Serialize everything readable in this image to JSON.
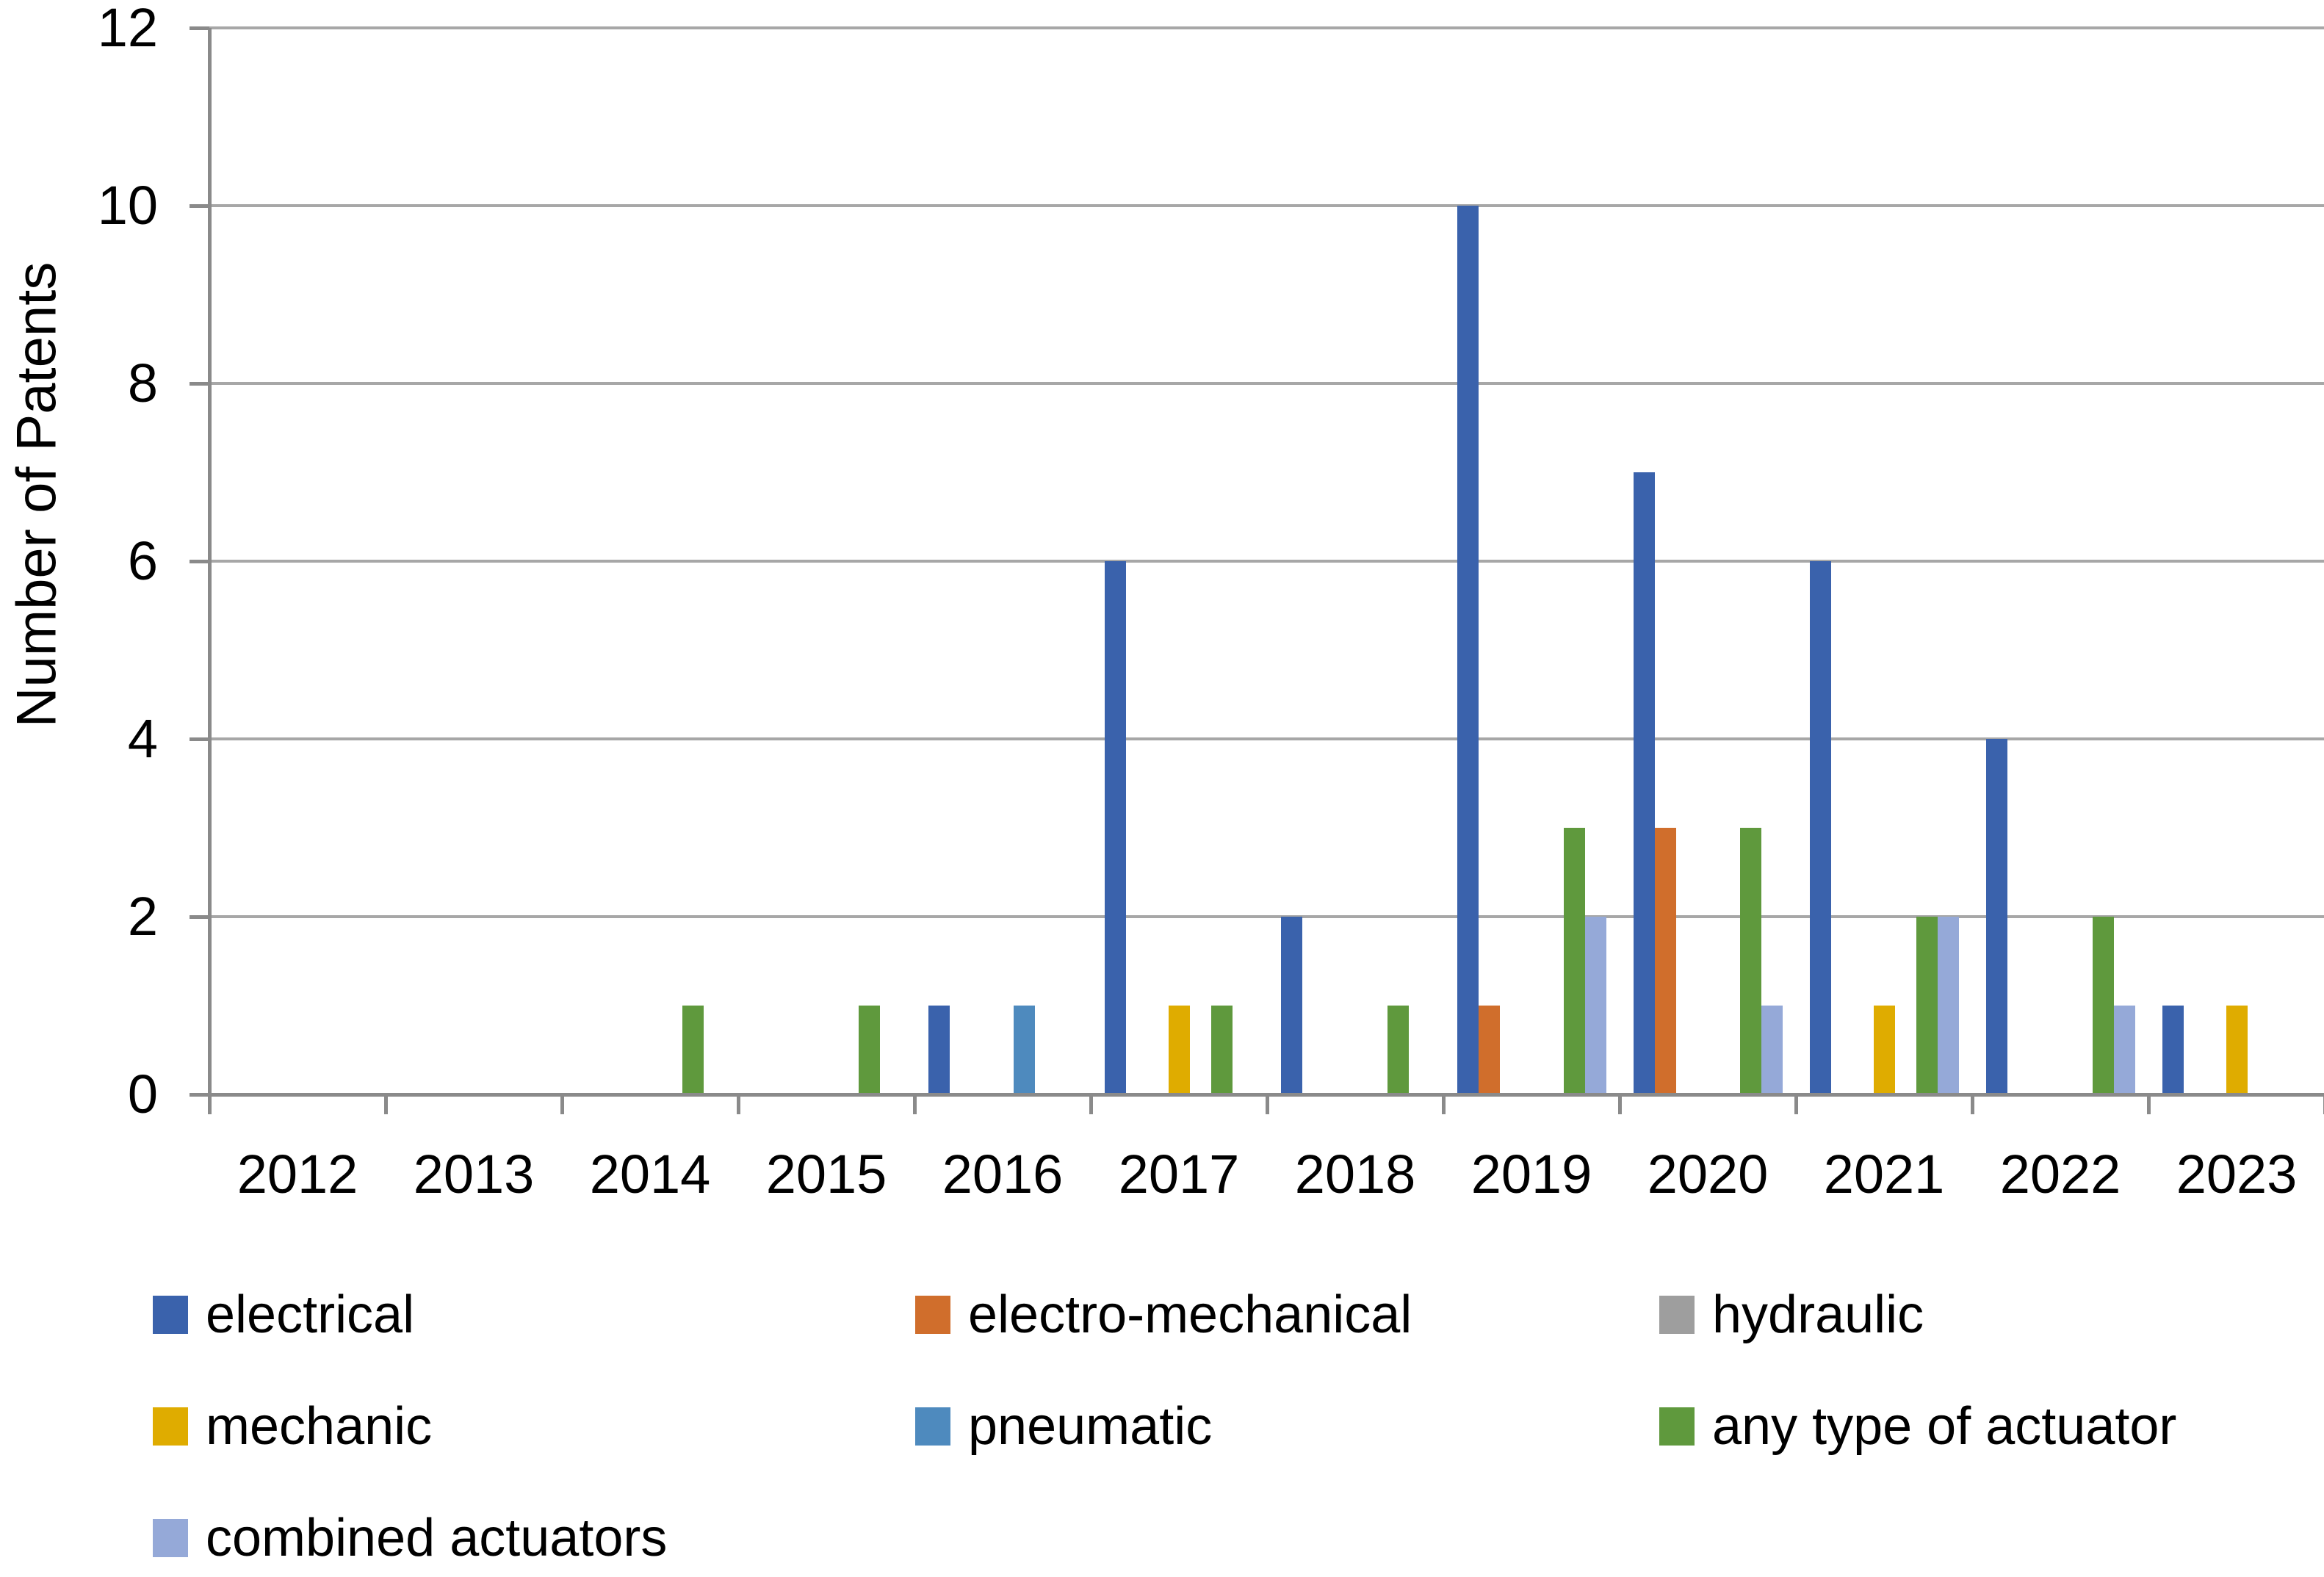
{
  "chart_data": {
    "type": "bar",
    "title": "",
    "xlabel": "",
    "ylabel": "Number of Patents",
    "categories": [
      "2012",
      "2013",
      "2014",
      "2015",
      "2016",
      "2017",
      "2018",
      "2019",
      "2020",
      "2021",
      "2022",
      "2023"
    ],
    "series": [
      {
        "name": "electrical",
        "color": "#3A62AC",
        "values": [
          0,
          0,
          0,
          0,
          1,
          6,
          2,
          10,
          7,
          6,
          4,
          1
        ]
      },
      {
        "name": "electro-mechanical",
        "color": "#D06E2C",
        "values": [
          0,
          0,
          0,
          0,
          0,
          0,
          0,
          1,
          3,
          0,
          0,
          0
        ]
      },
      {
        "name": "hydraulic",
        "color": "#9E9E9E",
        "values": [
          0,
          0,
          0,
          0,
          0,
          0,
          0,
          0,
          0,
          0,
          0,
          0
        ]
      },
      {
        "name": "mechanic",
        "color": "#DFAC00",
        "values": [
          0,
          0,
          0,
          0,
          0,
          1,
          0,
          0,
          0,
          1,
          0,
          1
        ]
      },
      {
        "name": "pneumatic",
        "color": "#4E8ABE",
        "values": [
          0,
          0,
          0,
          0,
          1,
          0,
          0,
          0,
          0,
          0,
          0,
          0
        ]
      },
      {
        "name": "any type of actuator",
        "color": "#5F993D",
        "values": [
          0,
          0,
          1,
          1,
          0,
          1,
          1,
          3,
          3,
          2,
          2,
          0
        ]
      },
      {
        "name": "combined actuators",
        "color": "#95A9D8",
        "values": [
          0,
          0,
          0,
          0,
          0,
          0,
          0,
          2,
          1,
          2,
          1,
          0
        ]
      }
    ],
    "y_ticks": [
      0,
      2,
      4,
      6,
      8,
      10,
      12
    ],
    "ylim": [
      0,
      12
    ],
    "grid": true,
    "legend_position": "bottom",
    "legend_columns": 3
  },
  "colors": {
    "gridline": "#A7A7A7",
    "axis": "#8A8A8A",
    "text": "#000000",
    "background": "#FFFFFF"
  }
}
